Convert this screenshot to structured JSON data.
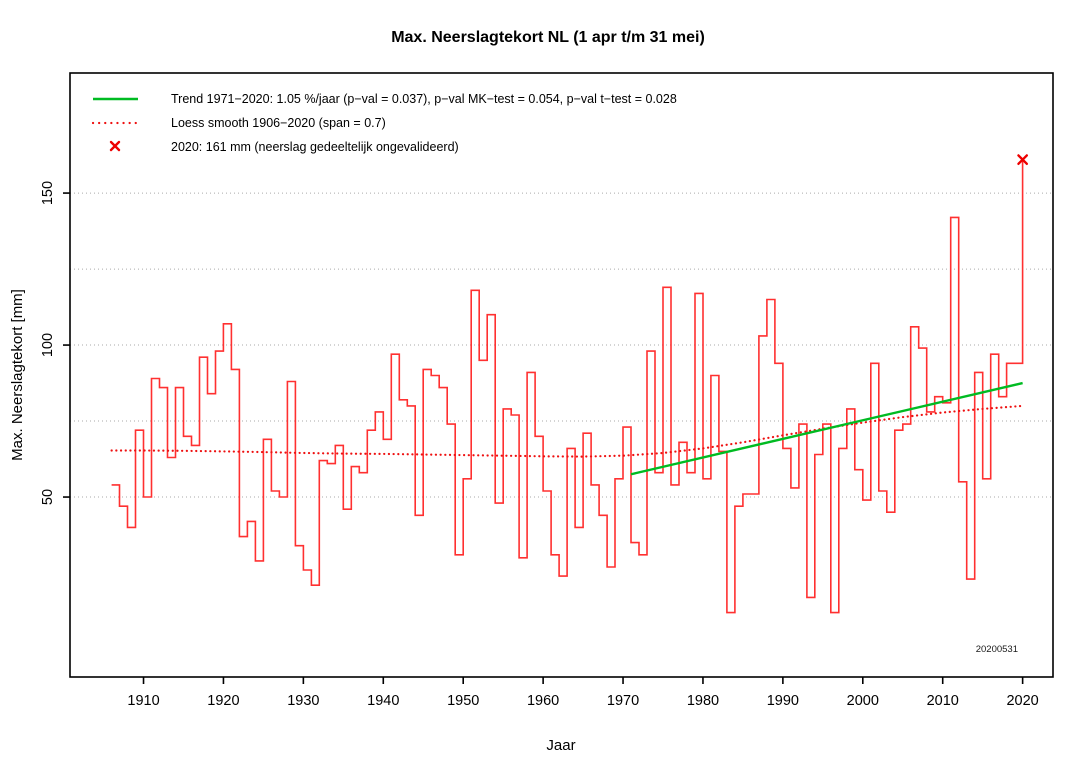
{
  "title": "Max. Neerslagtekort NL (1 apr t/m 31 mei)",
  "x_axis": {
    "label": "Jaar",
    "ticks": [
      1910,
      1920,
      1930,
      1940,
      1950,
      1960,
      1970,
      1980,
      1990,
      2000,
      2010,
      2020
    ]
  },
  "y_axis": {
    "label": "Max. Neerslagtekort [mm]",
    "ticks": [
      50,
      100,
      150
    ],
    "gridlines": [
      50,
      75,
      100,
      125,
      150
    ]
  },
  "legend": {
    "trend_label": "Trend 1971−2020:  1.05 %/jaar (p−val = 0.037), p−val MK−test = 0.054, p−val t−test = 0.028",
    "loess_label": "Loess smooth 1906−2020 (span = 0.7)",
    "marker_label": "2020: 161 mm (neerslag gedeeltelijk ongevalideerd)"
  },
  "watermark": "20200531",
  "colors": {
    "series_red": "#ff3030",
    "loess_red": "#ee1111",
    "trend_green": "#00bb22",
    "marker_red": "#ee0000",
    "grid_gray": "#aaaaaa",
    "axis_black": "#000000"
  },
  "chart_data": {
    "type": "line",
    "subtype": "step",
    "title": "Max. Neerslagtekort NL (1 apr t/m 31 mei)",
    "xlabel": "Jaar",
    "ylabel": "Max. Neerslagtekort [mm]",
    "xlim": [
      1900.8,
      2023.8
    ],
    "ylim": [
      -9.2,
      189.5
    ],
    "grid": "horizontal-dotted",
    "legend_position": "top-left-inside",
    "series": [
      {
        "name": "Max. neerslagtekort per jaar (stappenlijn)",
        "start_year": 1906,
        "end_year": 2020,
        "values": [
          54,
          47,
          40,
          72,
          50,
          89,
          86,
          63,
          86,
          70,
          67,
          96,
          84,
          98,
          107,
          92,
          37,
          42,
          29,
          69,
          52,
          50,
          88,
          34,
          26,
          21,
          62,
          61,
          67,
          46,
          60,
          58,
          72,
          78,
          69,
          97,
          82,
          80,
          44,
          92,
          90,
          86,
          74,
          31,
          56,
          118,
          95,
          110,
          48,
          79,
          77,
          30,
          91,
          70,
          52,
          31,
          24,
          66,
          40,
          71,
          54,
          44,
          27,
          56,
          73,
          35,
          31,
          98,
          58,
          119,
          54,
          68,
          58,
          117,
          56,
          90,
          65,
          12,
          47,
          51,
          51,
          103,
          115,
          94,
          66,
          53,
          74,
          17,
          64,
          74,
          12,
          66,
          79,
          59,
          49,
          94,
          52,
          45,
          72,
          74,
          106,
          99,
          78,
          83,
          81,
          142,
          55,
          23,
          91,
          56,
          97,
          83,
          94,
          94,
          161
        ]
      },
      {
        "name": "Trend 1971-2020",
        "x": [
          1971,
          2020
        ],
        "y": [
          57.5,
          87.5
        ]
      },
      {
        "name": "Loess smooth 1906-2020",
        "points": [
          [
            1906,
            65.3
          ],
          [
            1910,
            65.3
          ],
          [
            1915,
            65.2
          ],
          [
            1920,
            65.0
          ],
          [
            1925,
            64.8
          ],
          [
            1930,
            64.5
          ],
          [
            1935,
            64.3
          ],
          [
            1940,
            64.2
          ],
          [
            1945,
            64.0
          ],
          [
            1950,
            63.8
          ],
          [
            1955,
            63.6
          ],
          [
            1960,
            63.4
          ],
          [
            1965,
            63.3
          ],
          [
            1970,
            63.6
          ],
          [
            1975,
            64.5
          ],
          [
            1980,
            66.0
          ],
          [
            1985,
            68.0
          ],
          [
            1990,
            70.3
          ],
          [
            1995,
            72.5
          ],
          [
            2000,
            74.5
          ],
          [
            2005,
            76.3
          ],
          [
            2010,
            77.8
          ],
          [
            2015,
            79.0
          ],
          [
            2020,
            80.0
          ]
        ]
      }
    ],
    "highlight_point": {
      "year": 2020,
      "value": 161,
      "marker": "x"
    }
  }
}
